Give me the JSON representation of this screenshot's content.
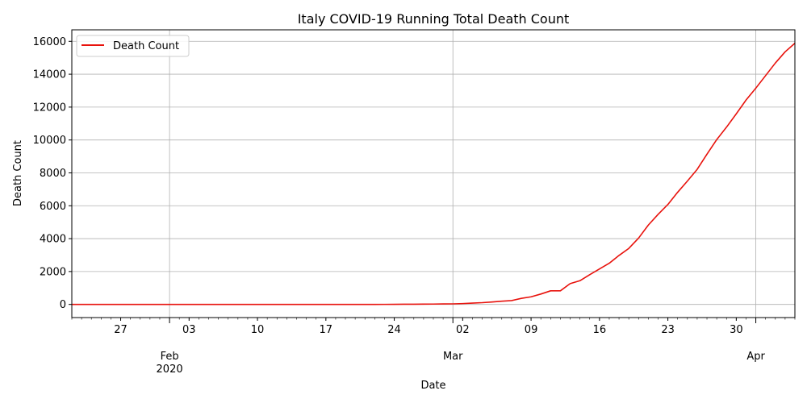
{
  "chart_data": {
    "type": "line",
    "title": "Italy COVID-19 Running Total Death Count",
    "xlabel": "Date",
    "ylabel": "Death Count",
    "xlim": [
      "2020-01-22",
      "2020-04-05"
    ],
    "ylim": [
      -800,
      16700
    ],
    "grid": true,
    "legend": "top-left",
    "yticks": [
      0,
      2000,
      4000,
      6000,
      8000,
      10000,
      12000,
      14000,
      16000
    ],
    "xticks_minor": [
      {
        "date": "2020-01-27",
        "label": "27"
      },
      {
        "date": "2020-02-03",
        "label": "03"
      },
      {
        "date": "2020-02-10",
        "label": "10"
      },
      {
        "date": "2020-02-17",
        "label": "17"
      },
      {
        "date": "2020-02-24",
        "label": "24"
      },
      {
        "date": "2020-03-02",
        "label": "02"
      },
      {
        "date": "2020-03-09",
        "label": "09"
      },
      {
        "date": "2020-03-16",
        "label": "16"
      },
      {
        "date": "2020-03-23",
        "label": "23"
      },
      {
        "date": "2020-03-30",
        "label": "30"
      }
    ],
    "xticks_major": [
      {
        "date": "2020-02-01",
        "label": "Feb",
        "sublabel": "2020"
      },
      {
        "date": "2020-03-01",
        "label": "Mar",
        "sublabel": ""
      },
      {
        "date": "2020-04-01",
        "label": "Apr",
        "sublabel": ""
      }
    ],
    "series": [
      {
        "name": "Death Count",
        "color": "#e8120c",
        "points": [
          [
            "2020-01-22",
            0
          ],
          [
            "2020-02-20",
            0
          ],
          [
            "2020-02-21",
            1
          ],
          [
            "2020-02-22",
            2
          ],
          [
            "2020-02-23",
            3
          ],
          [
            "2020-02-24",
            7
          ],
          [
            "2020-02-25",
            10
          ],
          [
            "2020-02-26",
            12
          ],
          [
            "2020-02-27",
            17
          ],
          [
            "2020-02-28",
            21
          ],
          [
            "2020-02-29",
            29
          ],
          [
            "2020-03-01",
            34
          ],
          [
            "2020-03-02",
            52
          ],
          [
            "2020-03-03",
            79
          ],
          [
            "2020-03-04",
            107
          ],
          [
            "2020-03-05",
            148
          ],
          [
            "2020-03-06",
            197
          ],
          [
            "2020-03-07",
            233
          ],
          [
            "2020-03-08",
            366
          ],
          [
            "2020-03-09",
            463
          ],
          [
            "2020-03-10",
            631
          ],
          [
            "2020-03-11",
            827
          ],
          [
            "2020-03-12",
            827
          ],
          [
            "2020-03-13",
            1266
          ],
          [
            "2020-03-14",
            1441
          ],
          [
            "2020-03-15",
            1809
          ],
          [
            "2020-03-16",
            2158
          ],
          [
            "2020-03-17",
            2503
          ],
          [
            "2020-03-18",
            2978
          ],
          [
            "2020-03-19",
            3405
          ],
          [
            "2020-03-20",
            4032
          ],
          [
            "2020-03-21",
            4825
          ],
          [
            "2020-03-22",
            5476
          ],
          [
            "2020-03-23",
            6077
          ],
          [
            "2020-03-24",
            6820
          ],
          [
            "2020-03-25",
            7503
          ],
          [
            "2020-03-26",
            8215
          ],
          [
            "2020-03-27",
            9134
          ],
          [
            "2020-03-28",
            10023
          ],
          [
            "2020-03-29",
            10779
          ],
          [
            "2020-03-30",
            11591
          ],
          [
            "2020-03-31",
            12428
          ],
          [
            "2020-04-01",
            13155
          ],
          [
            "2020-04-02",
            13915
          ],
          [
            "2020-04-03",
            14681
          ],
          [
            "2020-04-04",
            15362
          ],
          [
            "2020-04-05",
            15887
          ]
        ]
      }
    ]
  }
}
